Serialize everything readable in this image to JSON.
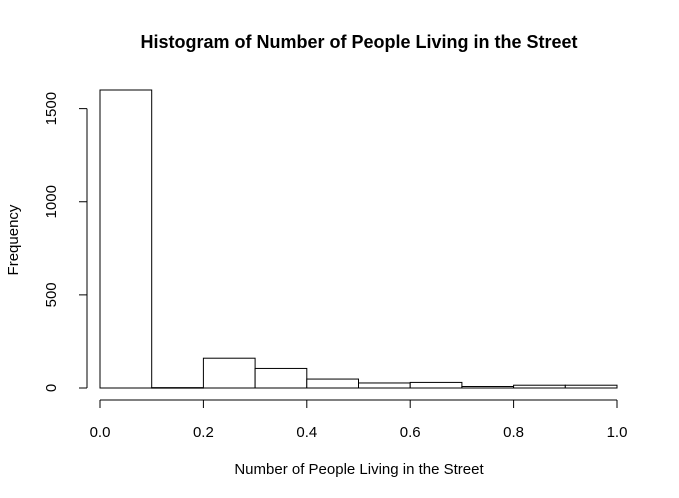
{
  "chart_data": {
    "type": "bar",
    "title": "Histogram of Number of People Living in the Street",
    "xlabel": "Number of People Living in the Street",
    "ylabel": "Frequency",
    "bins": [
      {
        "start": 0.0,
        "end": 0.1,
        "count": 1600
      },
      {
        "start": 0.1,
        "end": 0.2,
        "count": 2
      },
      {
        "start": 0.2,
        "end": 0.3,
        "count": 160
      },
      {
        "start": 0.3,
        "end": 0.4,
        "count": 105
      },
      {
        "start": 0.4,
        "end": 0.5,
        "count": 48
      },
      {
        "start": 0.5,
        "end": 0.6,
        "count": 27
      },
      {
        "start": 0.6,
        "end": 0.7,
        "count": 30
      },
      {
        "start": 0.7,
        "end": 0.8,
        "count": 8
      },
      {
        "start": 0.8,
        "end": 0.9,
        "count": 15
      },
      {
        "start": 0.9,
        "end": 1.0,
        "count": 15
      }
    ],
    "xlim": [
      0,
      1
    ],
    "ylim": [
      0,
      1600
    ],
    "x_ticks": [
      {
        "value": 0.0,
        "label": "0.0"
      },
      {
        "value": 0.2,
        "label": "0.2"
      },
      {
        "value": 0.4,
        "label": "0.4"
      },
      {
        "value": 0.6,
        "label": "0.6"
      },
      {
        "value": 0.8,
        "label": "0.8"
      },
      {
        "value": 1.0,
        "label": "1.0"
      }
    ],
    "y_ticks": [
      {
        "value": 0,
        "label": "0"
      },
      {
        "value": 500,
        "label": "500"
      },
      {
        "value": 1000,
        "label": "1000"
      },
      {
        "value": 1500,
        "label": "1500"
      }
    ],
    "grid": false,
    "legend": "none"
  }
}
